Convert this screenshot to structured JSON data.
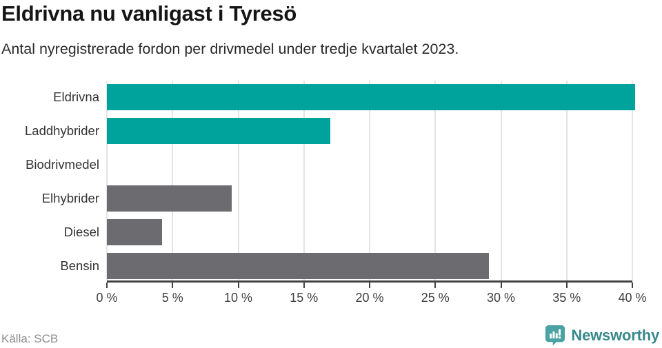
{
  "header": {
    "title": "Eldrivna nu vanligast i Tyresö",
    "subtitle": "Antal nyregistrerade fordon per drivmedel under tredje kvartalet 2023."
  },
  "chart_data": {
    "type": "bar",
    "orientation": "horizontal",
    "title": "Eldrivna nu vanligast i Tyresö",
    "subtitle": "Antal nyregistrerade fordon per drivmedel under tredje kvartalet 2023.",
    "categories": [
      "Eldrivna",
      "Laddhybrider",
      "Biodrivmedel",
      "Elhybrider",
      "Diesel",
      "Bensin"
    ],
    "values": [
      40.2,
      17.0,
      0,
      9.5,
      4.2,
      29.1
    ],
    "unit": "%",
    "xlabel": "",
    "ylabel": "",
    "xlim": [
      0,
      40
    ],
    "x_ticks": [
      0,
      5,
      10,
      15,
      20,
      25,
      30,
      35,
      40
    ],
    "x_tick_labels": [
      "0 %",
      "5 %",
      "10 %",
      "15 %",
      "20 %",
      "25 %",
      "30 %",
      "35 %",
      "40 %"
    ],
    "bar_colors": [
      "#00a39b",
      "#00a39b",
      "#00a39b",
      "#6c6b70",
      "#6c6b70",
      "#6c6b70"
    ],
    "grid": "vertical-gridlines-on",
    "legend": "none"
  },
  "colors": {
    "teal": "#00a39b",
    "gray": "#6c6b70",
    "gridline": "#e4e4e4",
    "axis": "#424242",
    "brand_teal": "#38898b",
    "brand_icon_teal": "#4aa2a3"
  },
  "footer": {
    "source": "Källa: SCB",
    "brand": "Newsworthy",
    "brand_icon": "newsworthy-speech-bubble-chart-icon"
  }
}
